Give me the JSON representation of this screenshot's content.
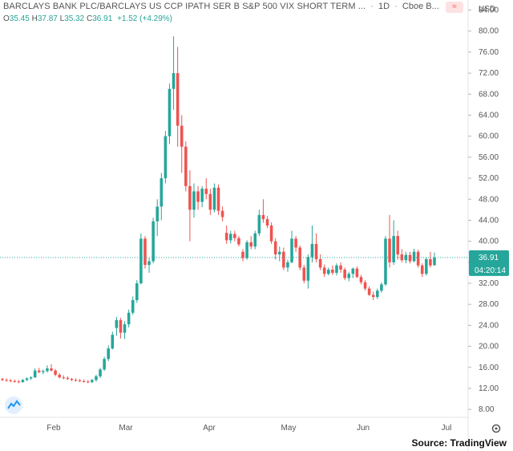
{
  "header": {
    "symbol_title": "BARCLAYS BANK PLC/BARCLAYS US CCP IPATH SER B S&P 500 VIX SHORT TERM ...",
    "interval": "1D",
    "exchange": "Cboe B..."
  },
  "ohlc": {
    "open_label": "O",
    "open": "35.45",
    "high_label": "H",
    "high": "37.87",
    "low_label": "L",
    "low": "35.32",
    "close_label": "C",
    "close": "36.91",
    "change": "+1.52 (+4.29%)"
  },
  "price_axis": {
    "currency": "USD",
    "last_price": "36.91",
    "countdown": "04:20:14"
  },
  "source": "Source: TradingView",
  "colors": {
    "up": "#26a69a",
    "down": "#ef5350",
    "last_line": "#26a69a"
  },
  "chart_data": {
    "type": "candlestick",
    "y_ticks": [
      8,
      12,
      16,
      20,
      24,
      28,
      32,
      36,
      40,
      44,
      48,
      52,
      56,
      60,
      64,
      68,
      72,
      76,
      80,
      84
    ],
    "ylim": [
      6.5,
      85
    ],
    "x_ticks": [
      "Feb",
      "Mar",
      "Apr",
      "May",
      "Jun",
      "Jul"
    ],
    "last_price": 36.91,
    "grid": false,
    "candles": [
      {
        "o": 13.8,
        "h": 14.0,
        "l": 13.4,
        "c": 13.6
      },
      {
        "o": 13.6,
        "h": 13.9,
        "l": 13.3,
        "c": 13.5
      },
      {
        "o": 13.5,
        "h": 13.8,
        "l": 13.2,
        "c": 13.4
      },
      {
        "o": 13.4,
        "h": 13.7,
        "l": 13.1,
        "c": 13.3
      },
      {
        "o": 13.3,
        "h": 13.6,
        "l": 13.0,
        "c": 13.2
      },
      {
        "o": 13.2,
        "h": 13.8,
        "l": 13.1,
        "c": 13.6
      },
      {
        "o": 13.6,
        "h": 14.1,
        "l": 13.4,
        "c": 13.9
      },
      {
        "o": 13.9,
        "h": 14.3,
        "l": 13.6,
        "c": 14.1
      },
      {
        "o": 14.1,
        "h": 15.8,
        "l": 14.0,
        "c": 15.4
      },
      {
        "o": 15.4,
        "h": 15.9,
        "l": 14.9,
        "c": 15.1
      },
      {
        "o": 15.1,
        "h": 15.6,
        "l": 14.7,
        "c": 15.3
      },
      {
        "o": 15.3,
        "h": 16.4,
        "l": 15.0,
        "c": 15.8
      },
      {
        "o": 15.8,
        "h": 16.6,
        "l": 15.2,
        "c": 15.4
      },
      {
        "o": 15.4,
        "h": 15.7,
        "l": 14.3,
        "c": 14.6
      },
      {
        "o": 14.6,
        "h": 14.9,
        "l": 13.9,
        "c": 14.1
      },
      {
        "o": 14.1,
        "h": 14.5,
        "l": 13.7,
        "c": 14.0
      },
      {
        "o": 14.0,
        "h": 14.3,
        "l": 13.6,
        "c": 13.8
      },
      {
        "o": 13.8,
        "h": 14.0,
        "l": 13.4,
        "c": 13.6
      },
      {
        "o": 13.6,
        "h": 13.9,
        "l": 13.3,
        "c": 13.5
      },
      {
        "o": 13.5,
        "h": 13.8,
        "l": 13.2,
        "c": 13.4
      },
      {
        "o": 13.4,
        "h": 13.7,
        "l": 13.1,
        "c": 13.3
      },
      {
        "o": 13.3,
        "h": 13.6,
        "l": 13.0,
        "c": 13.2
      },
      {
        "o": 13.2,
        "h": 13.8,
        "l": 13.0,
        "c": 13.6
      },
      {
        "o": 13.6,
        "h": 14.6,
        "l": 13.3,
        "c": 14.3
      },
      {
        "o": 14.3,
        "h": 15.9,
        "l": 14.0,
        "c": 15.6
      },
      {
        "o": 15.6,
        "h": 18.0,
        "l": 15.3,
        "c": 17.6
      },
      {
        "o": 17.6,
        "h": 20.2,
        "l": 17.2,
        "c": 19.6
      },
      {
        "o": 19.6,
        "h": 22.8,
        "l": 19.4,
        "c": 22.2
      },
      {
        "o": 23.5,
        "h": 25.6,
        "l": 22.0,
        "c": 25.0
      },
      {
        "o": 25.0,
        "h": 25.4,
        "l": 21.5,
        "c": 22.6
      },
      {
        "o": 22.6,
        "h": 24.8,
        "l": 21.4,
        "c": 24.2
      },
      {
        "o": 24.2,
        "h": 27.0,
        "l": 23.6,
        "c": 26.4
      },
      {
        "o": 26.4,
        "h": 29.5,
        "l": 26.0,
        "c": 28.8
      },
      {
        "o": 28.8,
        "h": 32.6,
        "l": 28.3,
        "c": 32.0
      },
      {
        "o": 32.0,
        "h": 41.5,
        "l": 31.8,
        "c": 40.5
      },
      {
        "o": 40.5,
        "h": 41.0,
        "l": 34.8,
        "c": 35.5
      },
      {
        "o": 35.5,
        "h": 36.8,
        "l": 34.0,
        "c": 36.2
      },
      {
        "o": 36.2,
        "h": 44.5,
        "l": 35.8,
        "c": 43.8
      },
      {
        "o": 43.8,
        "h": 48.0,
        "l": 41.0,
        "c": 46.6
      },
      {
        "o": 46.6,
        "h": 53.0,
        "l": 44.0,
        "c": 52.0
      },
      {
        "o": 52.0,
        "h": 61.0,
        "l": 51.0,
        "c": 60.0
      },
      {
        "o": 60.0,
        "h": 70.0,
        "l": 58.5,
        "c": 69.0
      },
      {
        "o": 69.0,
        "h": 79.0,
        "l": 65.0,
        "c": 72.0
      },
      {
        "o": 72.0,
        "h": 77.0,
        "l": 58.0,
        "c": 62.0
      },
      {
        "o": 62.0,
        "h": 64.0,
        "l": 53.0,
        "c": 58.0
      },
      {
        "o": 58.0,
        "h": 59.0,
        "l": 49.5,
        "c": 50.5
      },
      {
        "o": 50.5,
        "h": 53.5,
        "l": 40.0,
        "c": 46.0
      },
      {
        "o": 46.0,
        "h": 51.0,
        "l": 44.5,
        "c": 49.5
      },
      {
        "o": 49.5,
        "h": 50.5,
        "l": 46.0,
        "c": 47.5
      },
      {
        "o": 47.5,
        "h": 50.5,
        "l": 46.5,
        "c": 50.0
      },
      {
        "o": 50.0,
        "h": 52.0,
        "l": 48.0,
        "c": 49.0
      },
      {
        "o": 49.0,
        "h": 50.0,
        "l": 45.0,
        "c": 46.0
      },
      {
        "o": 46.0,
        "h": 51.0,
        "l": 45.5,
        "c": 50.2
      },
      {
        "o": 50.2,
        "h": 50.8,
        "l": 45.0,
        "c": 45.8
      },
      {
        "o": 45.8,
        "h": 46.6,
        "l": 43.8,
        "c": 44.6
      },
      {
        "o": 41.6,
        "h": 43.0,
        "l": 39.5,
        "c": 40.2
      },
      {
        "o": 40.2,
        "h": 42.0,
        "l": 39.6,
        "c": 41.4
      },
      {
        "o": 41.4,
        "h": 42.0,
        "l": 40.0,
        "c": 40.6
      },
      {
        "o": 40.6,
        "h": 41.0,
        "l": 39.0,
        "c": 39.4
      },
      {
        "o": 38.0,
        "h": 38.5,
        "l": 36.2,
        "c": 36.8
      },
      {
        "o": 36.8,
        "h": 40.2,
        "l": 36.5,
        "c": 39.8
      },
      {
        "o": 39.8,
        "h": 41.0,
        "l": 38.5,
        "c": 39.0
      },
      {
        "o": 39.0,
        "h": 42.0,
        "l": 38.5,
        "c": 41.5
      },
      {
        "o": 41.5,
        "h": 46.0,
        "l": 41.0,
        "c": 45.0
      },
      {
        "o": 45.0,
        "h": 48.0,
        "l": 43.5,
        "c": 44.2
      },
      {
        "o": 44.2,
        "h": 44.8,
        "l": 42.5,
        "c": 43.0
      },
      {
        "o": 43.0,
        "h": 43.6,
        "l": 39.5,
        "c": 40.0
      },
      {
        "o": 40.0,
        "h": 40.6,
        "l": 36.5,
        "c": 37.5
      },
      {
        "o": 37.5,
        "h": 39.0,
        "l": 36.2,
        "c": 38.0
      },
      {
        "o": 38.0,
        "h": 38.8,
        "l": 34.5,
        "c": 35.0
      },
      {
        "o": 35.0,
        "h": 36.5,
        "l": 34.2,
        "c": 36.0
      },
      {
        "o": 36.0,
        "h": 42.0,
        "l": 35.8,
        "c": 40.5
      },
      {
        "o": 40.5,
        "h": 41.0,
        "l": 38.0,
        "c": 38.8
      },
      {
        "o": 38.8,
        "h": 39.2,
        "l": 34.5,
        "c": 35.0
      },
      {
        "o": 35.0,
        "h": 35.5,
        "l": 32.0,
        "c": 32.5
      },
      {
        "o": 32.5,
        "h": 37.5,
        "l": 31.0,
        "c": 37.0
      },
      {
        "o": 37.0,
        "h": 43.0,
        "l": 36.0,
        "c": 39.5
      },
      {
        "o": 39.5,
        "h": 41.5,
        "l": 36.0,
        "c": 36.6
      },
      {
        "o": 36.6,
        "h": 37.5,
        "l": 34.5,
        "c": 35.0
      },
      {
        "o": 35.0,
        "h": 35.6,
        "l": 33.2,
        "c": 33.8
      },
      {
        "o": 33.8,
        "h": 35.0,
        "l": 33.5,
        "c": 34.6
      },
      {
        "o": 34.6,
        "h": 35.4,
        "l": 33.6,
        "c": 34.0
      },
      {
        "o": 34.0,
        "h": 35.8,
        "l": 33.5,
        "c": 35.4
      },
      {
        "o": 35.4,
        "h": 36.0,
        "l": 34.0,
        "c": 34.6
      },
      {
        "o": 34.6,
        "h": 35.0,
        "l": 32.6,
        "c": 33.0
      },
      {
        "o": 33.0,
        "h": 34.2,
        "l": 32.4,
        "c": 33.8
      },
      {
        "o": 33.8,
        "h": 35.0,
        "l": 33.0,
        "c": 34.8
      },
      {
        "o": 34.8,
        "h": 35.2,
        "l": 33.0,
        "c": 33.2
      },
      {
        "o": 33.2,
        "h": 33.6,
        "l": 31.8,
        "c": 32.2
      },
      {
        "o": 32.2,
        "h": 32.6,
        "l": 30.6,
        "c": 31.0
      },
      {
        "o": 31.0,
        "h": 31.4,
        "l": 29.6,
        "c": 29.8
      },
      {
        "o": 29.8,
        "h": 30.4,
        "l": 28.8,
        "c": 29.4
      },
      {
        "o": 29.4,
        "h": 31.0,
        "l": 29.0,
        "c": 30.6
      },
      {
        "o": 30.6,
        "h": 32.2,
        "l": 30.2,
        "c": 31.8
      },
      {
        "o": 31.8,
        "h": 41.0,
        "l": 31.5,
        "c": 40.5
      },
      {
        "o": 40.5,
        "h": 45.0,
        "l": 35.0,
        "c": 36.0
      },
      {
        "o": 36.0,
        "h": 44.0,
        "l": 35.5,
        "c": 41.0
      },
      {
        "o": 41.0,
        "h": 42.0,
        "l": 36.5,
        "c": 37.5
      },
      {
        "o": 37.5,
        "h": 38.5,
        "l": 36.0,
        "c": 36.4
      },
      {
        "o": 36.4,
        "h": 38.0,
        "l": 35.8,
        "c": 37.4
      },
      {
        "o": 37.4,
        "h": 38.0,
        "l": 35.8,
        "c": 36.2
      },
      {
        "o": 36.2,
        "h": 38.6,
        "l": 36.0,
        "c": 38.0
      },
      {
        "o": 38.0,
        "h": 38.4,
        "l": 35.0,
        "c": 35.4
      },
      {
        "o": 35.4,
        "h": 35.8,
        "l": 33.2,
        "c": 33.8
      },
      {
        "o": 33.8,
        "h": 37.0,
        "l": 33.5,
        "c": 36.6
      },
      {
        "o": 36.6,
        "h": 38.0,
        "l": 35.0,
        "c": 35.4
      },
      {
        "o": 35.45,
        "h": 37.87,
        "l": 35.32,
        "c": 36.91
      }
    ]
  }
}
